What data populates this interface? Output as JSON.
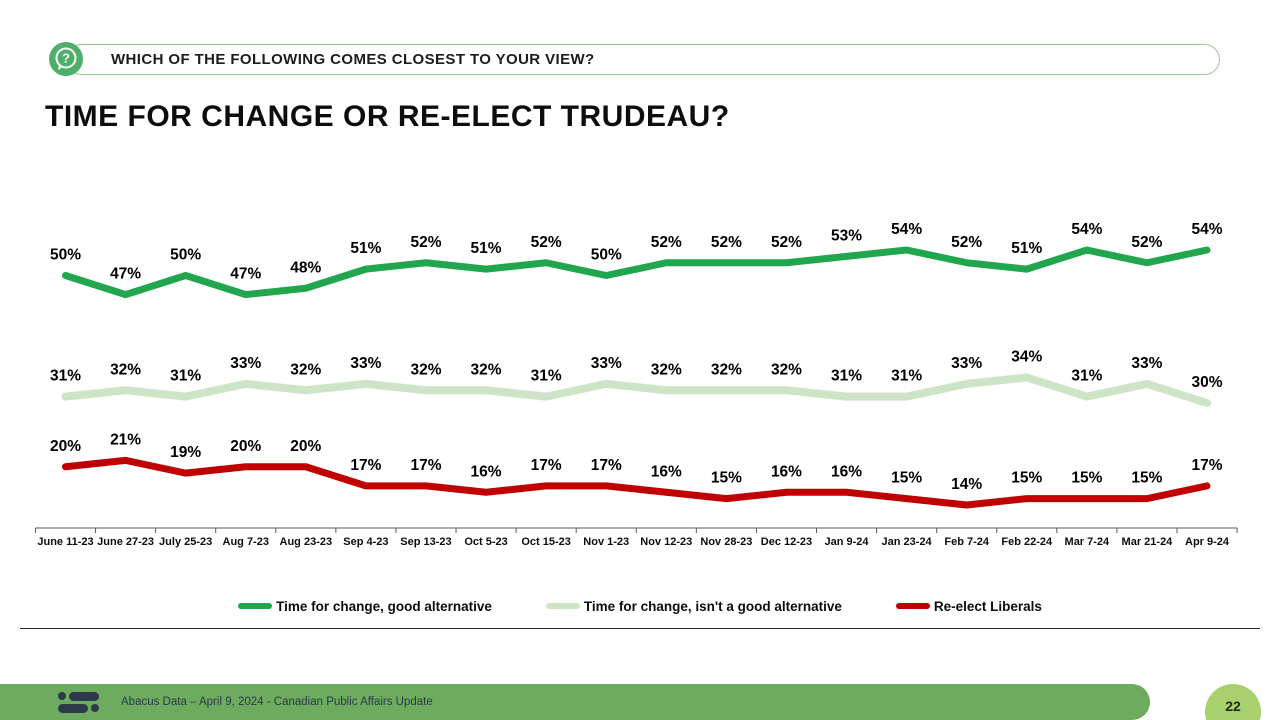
{
  "header": {
    "question": "WHICH OF THE FOLLOWING COMES CLOSEST TO YOUR VIEW?"
  },
  "title": "TIME FOR CHANGE OR RE-ELECT TRUDEAU?",
  "chart_data": {
    "type": "line",
    "categories": [
      "June 11-23",
      "June 27-23",
      "July 25-23",
      "Aug 7-23",
      "Aug 23-23",
      "Sep 4-23",
      "Sep 13-23",
      "Oct 5-23",
      "Oct 15-23",
      "Nov 1-23",
      "Nov 12-23",
      "Nov 28-23",
      "Dec 12-23",
      "Jan 9-24",
      "Jan 23-24",
      "Feb 7-24",
      "Feb 22-24",
      "Mar 7-24",
      "Mar 21-24",
      "Apr 9-24"
    ],
    "series": [
      {
        "name": "Time for change, good alternative",
        "color": "#21a64e",
        "values": [
          50,
          47,
          50,
          47,
          48,
          51,
          52,
          51,
          52,
          50,
          52,
          52,
          52,
          53,
          54,
          52,
          51,
          54,
          52,
          54
        ]
      },
      {
        "name": "Time for change, isn't a good alternative",
        "color": "#cde4c7",
        "values": [
          31,
          32,
          31,
          33,
          32,
          33,
          32,
          32,
          31,
          33,
          32,
          32,
          32,
          31,
          31,
          33,
          34,
          31,
          33,
          30
        ]
      },
      {
        "name": "Re-elect Liberals",
        "color": "#c00000",
        "values": [
          20,
          21,
          19,
          20,
          20,
          17,
          17,
          16,
          17,
          17,
          16,
          15,
          16,
          16,
          15,
          14,
          15,
          15,
          15,
          17
        ]
      }
    ],
    "data_label_format": "percent",
    "ylim": [
      10,
      60
    ],
    "grid": false,
    "legend_position": "bottom",
    "xlabel": "",
    "ylabel": ""
  },
  "footer": {
    "source": "Abacus Data – April 9, 2024 - Canadian Public Affairs Update",
    "page_number": "22"
  },
  "colors": {
    "brand_green": "#21a64e",
    "light_green": "#cde4c7",
    "red": "#c00000",
    "footer_bar": "#6dab5e",
    "page_badge": "#a9d06e",
    "icon_green": "#4db06a",
    "pill_border": "#94c794",
    "logo_navy": "#2c3a4a",
    "axis": "#595959"
  }
}
